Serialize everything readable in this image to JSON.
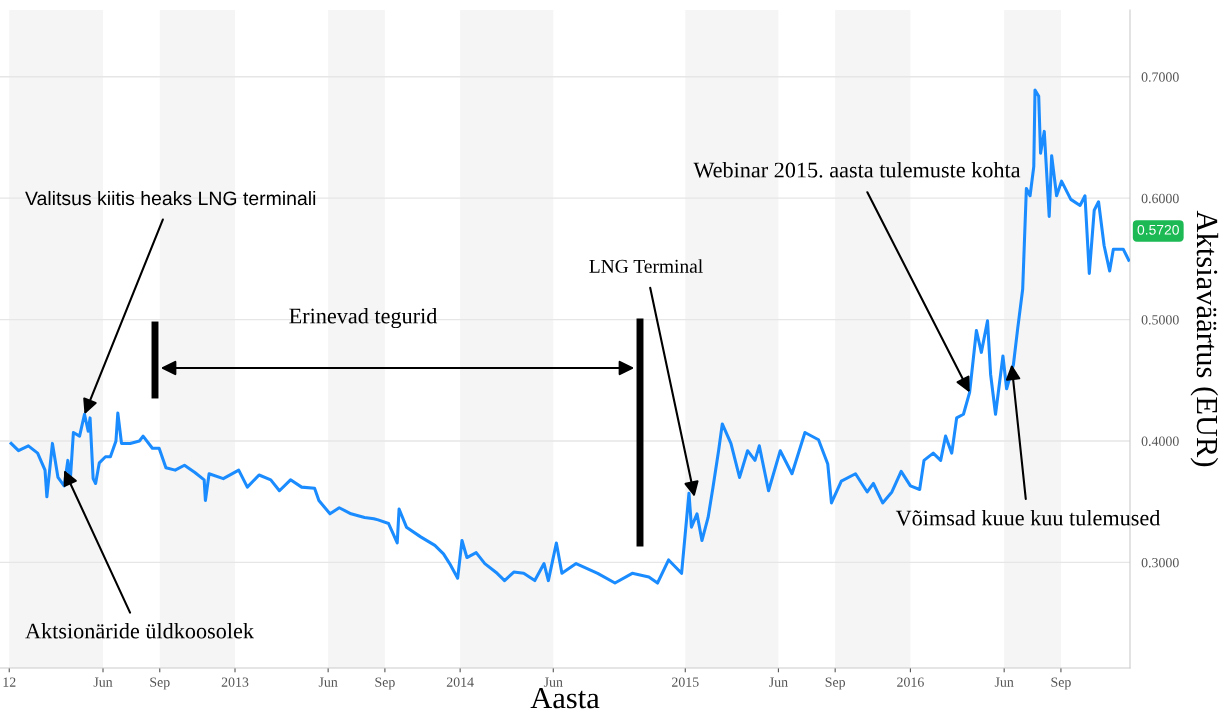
{
  "chart_data": {
    "type": "line",
    "xlabel": "Aasta",
    "ylabel": "Aktsiaväärtus (EUR)",
    "x": [
      "2012-01-04",
      "2012-01-16",
      "2012-02-01",
      "2012-02-16",
      "2012-02-28",
      "2012-03-02",
      "2012-03-11",
      "2012-03-20",
      "2012-03-30",
      "2012-04-05",
      "2012-04-09",
      "2012-04-14",
      "2012-04-24",
      "2012-05-02",
      "2012-05-08",
      "2012-05-11",
      "2012-05-16",
      "2012-05-20",
      "2012-05-26",
      "2012-06-05",
      "2012-06-13",
      "2012-06-22",
      "2012-06-25",
      "2012-07-01",
      "2012-07-15",
      "2012-07-30",
      "2012-08-05",
      "2012-08-20",
      "2012-08-31",
      "2012-09-11",
      "2012-09-26",
      "2012-10-11",
      "2012-10-28",
      "2012-11-12",
      "2012-11-14",
      "2012-11-20",
      "2012-12-13",
      "2013-01-07",
      "2013-01-21",
      "2013-02-09",
      "2013-02-28",
      "2013-03-14",
      "2013-04-01",
      "2013-04-19",
      "2013-05-10",
      "2013-05-17",
      "2013-06-04",
      "2013-06-19",
      "2013-07-08",
      "2013-07-30",
      "2013-08-14",
      "2013-08-21",
      "2013-09-07",
      "2013-09-21",
      "2013-09-24",
      "2013-10-06",
      "2013-10-29",
      "2013-11-21",
      "2013-12-05",
      "2013-12-15",
      "2013-12-28",
      "2014-01-04",
      "2014-01-12",
      "2014-01-27",
      "2014-02-10",
      "2014-03-02",
      "2014-03-14",
      "2014-03-29",
      "2014-04-14",
      "2014-05-02",
      "2014-05-17",
      "2014-05-24",
      "2014-06-06",
      "2014-06-15",
      "2014-07-08",
      "2014-08-12",
      "2014-09-09",
      "2014-10-07",
      "2014-11-03",
      "2014-11-17",
      "2014-12-05",
      "2014-12-26",
      "2015-01-07",
      "2015-01-11",
      "2015-01-20",
      "2015-01-28",
      "2015-02-07",
      "2015-02-15",
      "2015-02-24",
      "2015-03-02",
      "2015-03-16",
      "2015-03-30",
      "2015-04-12",
      "2015-04-24",
      "2015-05-01",
      "2015-05-16",
      "2015-06-04",
      "2015-06-23",
      "2015-07-14",
      "2015-08-05",
      "2015-08-20",
      "2015-08-26",
      "2015-09-11",
      "2015-10-04",
      "2015-10-23",
      "2015-11-02",
      "2015-11-17",
      "2015-12-02",
      "2015-12-17",
      "2016-01-01",
      "2016-01-16",
      "2016-01-23",
      "2016-02-07",
      "2016-02-19",
      "2016-02-27",
      "2016-03-08",
      "2016-03-16",
      "2016-03-27",
      "2016-04-06",
      "2016-04-17",
      "2016-04-25",
      "2016-05-05",
      "2016-05-10",
      "2016-05-18",
      "2016-05-30",
      "2016-06-05",
      "2016-06-16",
      "2016-06-23",
      "2016-07-01",
      "2016-07-07",
      "2016-07-13",
      "2016-07-19",
      "2016-07-21",
      "2016-07-27",
      "2016-07-30",
      "2016-08-05",
      "2016-08-13",
      "2016-08-17",
      "2016-08-25",
      "2016-09-02",
      "2016-09-17",
      "2016-10-02",
      "2016-10-10",
      "2016-10-17",
      "2016-10-25",
      "2016-11-01",
      "2016-11-10",
      "2016-11-19",
      "2016-11-25",
      "2016-12-11",
      "2016-12-20"
    ],
    "series": [
      {
        "color": "#1a8cff",
        "values": [
          0.398,
          0.392,
          0.396,
          0.39,
          0.376,
          0.354,
          0.398,
          0.37,
          0.363,
          0.384,
          0.368,
          0.407,
          0.404,
          0.422,
          0.408,
          0.419,
          0.369,
          0.365,
          0.382,
          0.387,
          0.387,
          0.4,
          0.423,
          0.398,
          0.398,
          0.4,
          0.404,
          0.394,
          0.394,
          0.378,
          0.376,
          0.38,
          0.374,
          0.368,
          0.351,
          0.373,
          0.369,
          0.376,
          0.362,
          0.372,
          0.368,
          0.359,
          0.368,
          0.362,
          0.361,
          0.351,
          0.34,
          0.345,
          0.34,
          0.337,
          0.336,
          0.335,
          0.332,
          0.316,
          0.344,
          0.329,
          0.321,
          0.314,
          0.307,
          0.299,
          0.287,
          0.318,
          0.304,
          0.308,
          0.299,
          0.291,
          0.285,
          0.292,
          0.291,
          0.285,
          0.299,
          0.285,
          0.316,
          0.291,
          0.299,
          0.291,
          0.283,
          0.291,
          0.288,
          0.283,
          0.302,
          0.291,
          0.357,
          0.329,
          0.34,
          0.318,
          0.337,
          0.362,
          0.392,
          0.414,
          0.398,
          0.37,
          0.392,
          0.384,
          0.396,
          0.359,
          0.392,
          0.373,
          0.407,
          0.401,
          0.381,
          0.349,
          0.367,
          0.373,
          0.358,
          0.365,
          0.349,
          0.358,
          0.375,
          0.363,
          0.36,
          0.384,
          0.39,
          0.384,
          0.404,
          0.39,
          0.419,
          0.422,
          0.44,
          0.491,
          0.473,
          0.499,
          0.455,
          0.422,
          0.47,
          0.443,
          0.463,
          0.493,
          0.525,
          0.608,
          0.602,
          0.626,
          0.689,
          0.684,
          0.637,
          0.655,
          0.585,
          0.635,
          0.602,
          0.614,
          0.599,
          0.594,
          0.602,
          0.538,
          0.59,
          0.597,
          0.561,
          0.54,
          0.558,
          0.558,
          0.549
        ]
      }
    ],
    "xlim": [
      "2011-12-17",
      "2016-12-22"
    ],
    "xticks": [
      {
        "value": "2012-01-01",
        "label": "12"
      },
      {
        "value": "2012-06-01",
        "label": "Jun"
      },
      {
        "value": "2012-09-01",
        "label": "Sep"
      },
      {
        "value": "2013-01-01",
        "label": "2013"
      },
      {
        "value": "2013-06-01",
        "label": "Jun"
      },
      {
        "value": "2013-09-01",
        "label": "Sep"
      },
      {
        "value": "2014-01-01",
        "label": "2014"
      },
      {
        "value": "2014-06-01",
        "label": "Jun"
      },
      {
        "value": "2015-01-01",
        "label": "2015"
      },
      {
        "value": "2015-06-01",
        "label": "Jun"
      },
      {
        "value": "2015-09-01",
        "label": "Sep"
      },
      {
        "value": "2016-01-01",
        "label": "2016"
      },
      {
        "value": "2016-06-01",
        "label": "Jun"
      },
      {
        "value": "2016-09-01",
        "label": "Sep"
      }
    ],
    "ylim": [
      0.213,
      0.755
    ],
    "yticks": [
      {
        "value": 0.3,
        "label": "0.3000"
      },
      {
        "value": 0.4,
        "label": "0.4000"
      },
      {
        "value": 0.5,
        "label": "0.5000"
      },
      {
        "value": 0.6,
        "label": "0.6000"
      },
      {
        "value": 0.7,
        "label": "0.7000"
      }
    ],
    "grid": "y",
    "bands": [
      {
        "axis": "x",
        "from": "2012-01-01",
        "to": "2012-06-01",
        "color": "#f5f5f5"
      },
      {
        "axis": "x",
        "from": "2012-09-01",
        "to": "2013-01-01",
        "color": "#f5f5f5"
      },
      {
        "axis": "x",
        "from": "2013-06-01",
        "to": "2013-09-01",
        "color": "#f5f5f5"
      },
      {
        "axis": "x",
        "from": "2014-01-01",
        "to": "2014-06-01",
        "color": "#f5f5f5"
      },
      {
        "axis": "x",
        "from": "2015-01-01",
        "to": "2015-06-01",
        "color": "#f5f5f5"
      },
      {
        "axis": "x",
        "from": "2015-09-01",
        "to": "2016-01-01",
        "color": "#f5f5f5"
      },
      {
        "axis": "x",
        "from": "2016-06-01",
        "to": "2016-09-01",
        "color": "#f5f5f5"
      }
    ],
    "annotations": [
      {
        "text": "Valitsus kiitis heaks LNG terminali",
        "x": "2012-05-02",
        "y": 0.422
      },
      {
        "text": "Aktsionäride üldkoosolek",
        "x": "2012-03-30",
        "y": 0.376
      },
      "Erinevad tegurid",
      {
        "text": "LNG Terminal",
        "x": "2015-01-16",
        "y": 0.354
      },
      {
        "text": "Webinar 2015. aasta tulemuste kohta",
        "x": "2016-04-06",
        "y": 0.44
      },
      {
        "text": "Võimsad kuue kuu tulemused",
        "x": "2016-06-13",
        "y": 0.463
      },
      "0.5720"
    ]
  }
}
